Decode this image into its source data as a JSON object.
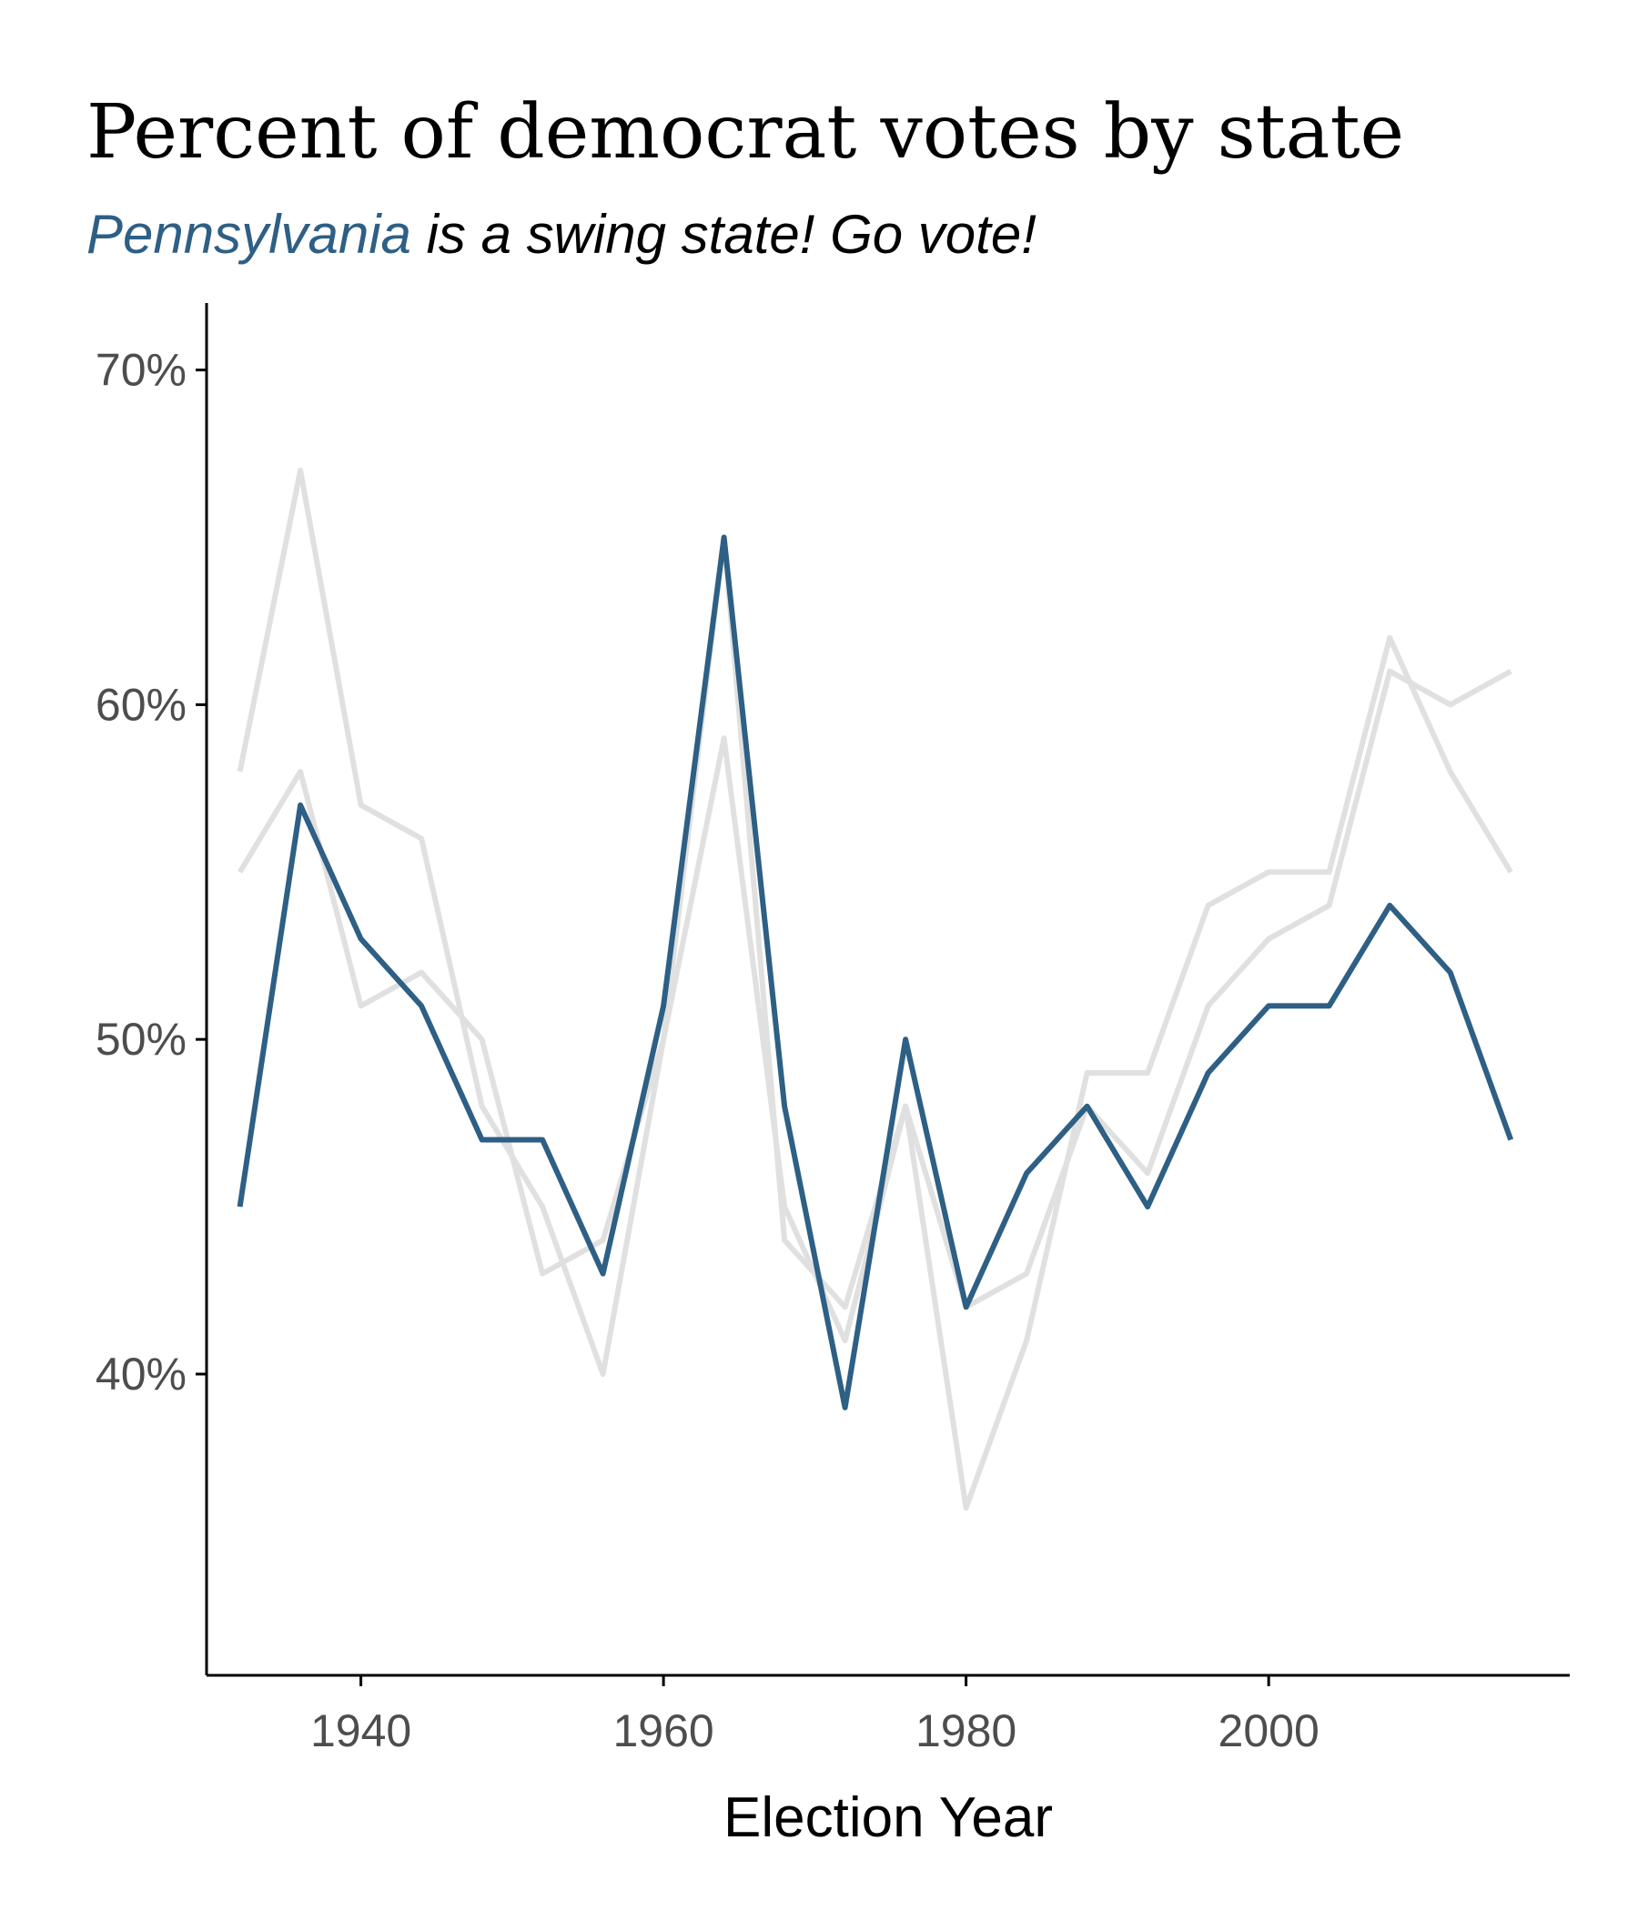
{
  "chart_data": {
    "type": "line",
    "title": "Percent of democrat votes by state",
    "subtitle": {
      "highlight": "Pennsylvania",
      "rest": " is a swing state! Go vote!"
    },
    "xlabel": "Election Year",
    "ylabel": "",
    "xlim": [
      1929.8,
      2019.9
    ],
    "ylim": [
      31,
      72
    ],
    "x_ticks": [
      1940,
      1960,
      1980,
      2000
    ],
    "y_ticks": [
      40,
      50,
      60,
      70
    ],
    "y_tick_labels": [
      "40%",
      "50%",
      "60%",
      "70%"
    ],
    "x": [
      1932,
      1936,
      1940,
      1944,
      1948,
      1952,
      1956,
      1960,
      1964,
      1968,
      1972,
      1976,
      1980,
      1984,
      1988,
      1992,
      1996,
      2000,
      2004,
      2008,
      2012,
      2016
    ],
    "series": [
      {
        "values": [
          58,
          67,
          57,
          56,
          48,
          45,
          40,
          50,
          59,
          45,
          41,
          48,
          36,
          41,
          49,
          49,
          54,
          55,
          55,
          62,
          58,
          55
        ],
        "color": "#e0e0e0",
        "highlight": false
      },
      {
        "values": [
          55,
          58,
          51,
          52,
          50,
          43,
          44,
          50,
          65,
          44,
          42,
          48,
          42,
          43,
          48,
          46,
          51,
          53,
          54,
          61,
          60,
          61
        ],
        "color": "#e0e0e0",
        "highlight": false
      },
      {
        "name": "Pennsylvania",
        "values": [
          45,
          57,
          53,
          51,
          47,
          47,
          43,
          51,
          65,
          48,
          39,
          50,
          42,
          46,
          48,
          45,
          49,
          51,
          51,
          54,
          52,
          47
        ],
        "color": "#2e5f85",
        "highlight": true
      }
    ],
    "grid": false,
    "legend": "none"
  }
}
